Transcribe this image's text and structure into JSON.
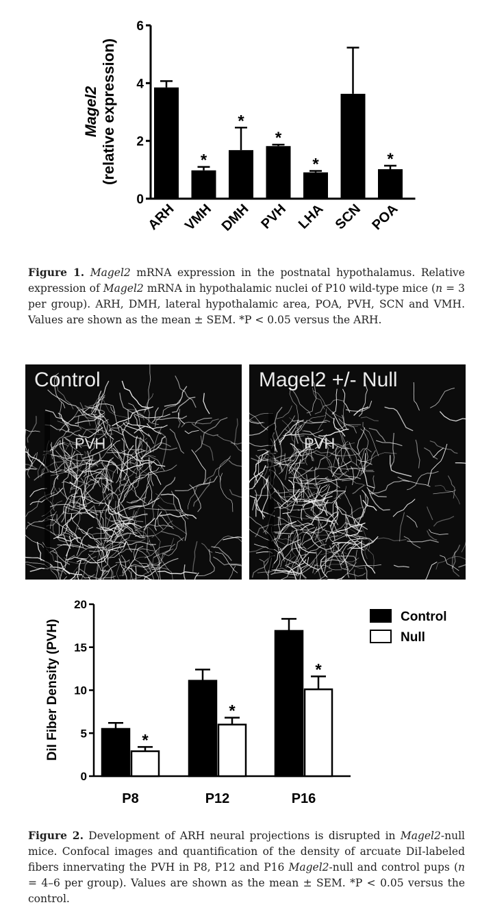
{
  "chart_data": [
    {
      "type": "bar",
      "title": "",
      "categories": [
        "ARH",
        "VMH",
        "DMH",
        "PVH",
        "LHA",
        "SCN",
        "POA"
      ],
      "values": [
        3.85,
        0.98,
        1.68,
        1.82,
        0.91,
        3.63,
        1.02
      ],
      "errors": [
        0.22,
        0.12,
        0.78,
        0.05,
        0.05,
        1.6,
        0.12
      ],
      "significant": [
        false,
        true,
        true,
        true,
        true,
        false,
        true
      ],
      "significance_marker": "*",
      "ylabel": "Magel2",
      "ylabel2": "(relative expression)",
      "ylim": [
        0,
        6
      ],
      "yticks": [
        "0",
        "2",
        "4",
        "6"
      ],
      "bar_color": "#000000",
      "grid": false
    },
    {
      "type": "bar",
      "title": "",
      "categories": [
        "P8",
        "P12",
        "P16"
      ],
      "series": [
        {
          "name": "Control",
          "values": [
            5.5,
            11.1,
            16.9
          ],
          "errors": [
            0.7,
            1.3,
            1.4
          ],
          "significant": [
            false,
            false,
            false
          ],
          "fill": "#000000"
        },
        {
          "name": "Null",
          "values": [
            2.9,
            6.0,
            10.1
          ],
          "errors": [
            0.5,
            0.8,
            1.5
          ],
          "significant": [
            true,
            true,
            true
          ],
          "fill": "#ffffff"
        }
      ],
      "significance_marker": "*",
      "ylabel": "DiI Fiber Density (PVH)",
      "ylim": [
        0,
        20
      ],
      "yticks": [
        "0",
        "5",
        "10",
        "15",
        "20"
      ],
      "legend": "top-right",
      "grid": false
    }
  ],
  "figure1_caption": {
    "label": "Figure 1.",
    "p1": " ",
    "gene1": "Magel2",
    "p2": " mRNA expression in the postnatal hypothalamus. Relative expression of ",
    "gene2": "Magel2",
    "p3": " mRNA in hypothalamic nuclei of P10 wild-type mice (",
    "n": "n",
    "p4": " = 3 per group). ARH, DMH, lateral hypothalamic area, POA, PVH, SCN and VMH. Values are shown as the mean ± SEM. *P < 0.05 versus the ARH."
  },
  "micrographs": {
    "left_title": "Control",
    "right_title": "Magel2 +/- Null",
    "left_region": "PVH",
    "right_region": "PVH"
  },
  "figure2_caption": {
    "label": "Figure 2.",
    "p1": " Development of ARH neural projections is disrupted in ",
    "gene1": "Magel2",
    "p2": "-null mice. Confocal images and quantification of the density of arcuate DiI-labeled fibers innervating the PVH in P8, P12 and P16 ",
    "gene2": "Magel2",
    "p3": "-null and control pups (",
    "n": "n",
    "p4": " = 4–6 per group). Values are shown as the mean ± SEM. *P < 0.05 versus the control."
  }
}
